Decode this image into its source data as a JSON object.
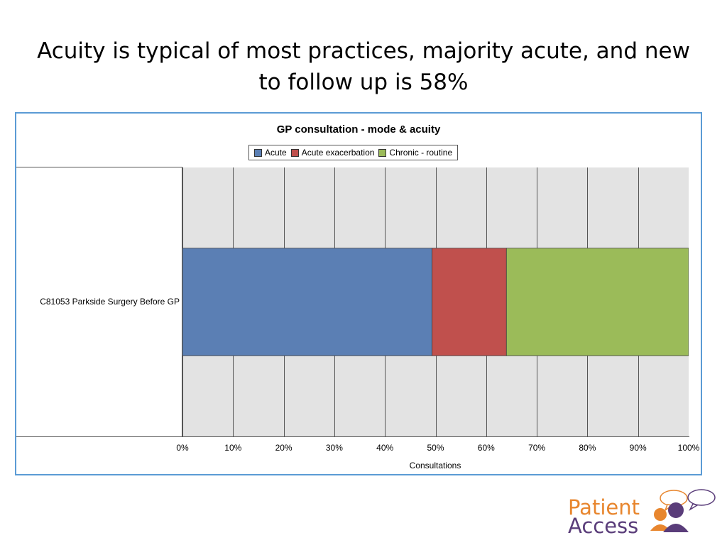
{
  "slide": {
    "title": "Acuity is typical of most practices, majority acute, and new to follow up is 58%"
  },
  "chart_data": {
    "type": "bar",
    "orientation": "horizontal",
    "stacked": "100%",
    "title": "GP consultation - mode & acuity",
    "categories": [
      "C81053 Parkside Surgery   Before   GP"
    ],
    "series": [
      {
        "name": "Acute",
        "values": [
          49.3
        ],
        "color": "#5b7fb4"
      },
      {
        "name": "Acute exacerbation",
        "values": [
          14.7
        ],
        "color": "#c0504d"
      },
      {
        "name": "Chronic - routine",
        "values": [
          36.0
        ],
        "color": "#9bbb59"
      }
    ],
    "xlabel": "Consultations",
    "ylabel": "",
    "xlim": [
      0,
      100
    ],
    "x_ticks": [
      "0%",
      "10%",
      "20%",
      "30%",
      "40%",
      "50%",
      "60%",
      "70%",
      "80%",
      "90%",
      "100%"
    ],
    "grid": true,
    "legend_position": "top",
    "plot_background": "#e3e3e3",
    "frame_color": "#5b9bd5"
  },
  "logo": {
    "line1": "Patient",
    "line2": "Access",
    "color_orange": "#e8862e",
    "color_purple": "#5a3d7a"
  }
}
